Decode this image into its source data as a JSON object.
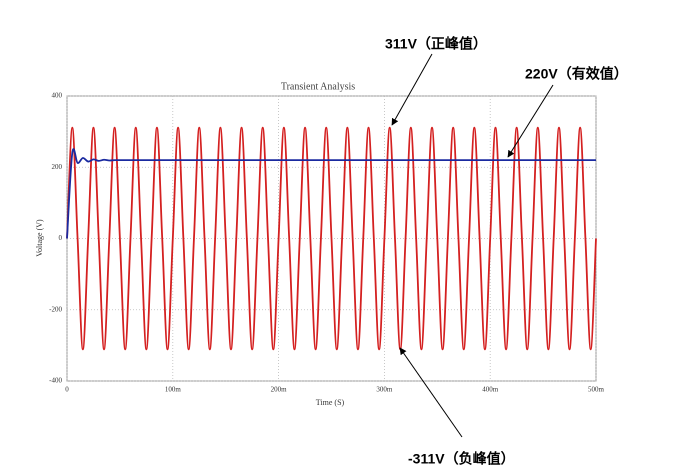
{
  "chart_data": {
    "type": "line",
    "title": "Transient Analysis",
    "x_label": "Time (S)",
    "y_label": "Voltage (V)",
    "x": [
      0,
      0.005,
      0.01,
      0.015,
      0.02,
      0.025,
      0.03,
      0.035,
      0.04,
      0.045,
      0.05,
      0.055,
      0.06,
      0.065,
      0.07,
      0.075,
      0.08,
      0.085,
      0.09,
      0.095,
      0.1,
      0.105,
      0.11,
      0.115,
      0.12,
      0.125,
      0.13,
      0.135,
      0.14,
      0.145,
      0.15,
      0.155,
      0.16,
      0.165,
      0.17,
      0.175,
      0.18,
      0.185,
      0.19,
      0.195,
      0.2,
      0.205,
      0.21,
      0.215,
      0.22,
      0.225,
      0.23,
      0.235,
      0.24,
      0.245,
      0.25,
      0.255,
      0.26,
      0.265,
      0.27,
      0.275,
      0.28,
      0.285,
      0.29,
      0.295,
      0.3,
      0.305,
      0.31,
      0.315,
      0.32,
      0.325,
      0.33,
      0.335,
      0.34,
      0.345,
      0.35,
      0.355,
      0.36,
      0.365,
      0.37,
      0.375,
      0.38,
      0.385,
      0.39,
      0.395,
      0.4,
      0.405,
      0.41,
      0.415,
      0.42,
      0.425,
      0.43,
      0.435,
      0.44,
      0.445,
      0.45,
      0.455,
      0.46,
      0.465,
      0.47,
      0.475,
      0.48,
      0.485,
      0.49,
      0.495,
      0.5
    ],
    "series": [
      {
        "color": "#d42020",
        "values": [
          0,
          311,
          0,
          -311,
          0,
          311,
          0,
          -311,
          0,
          311,
          0,
          -311,
          0,
          311,
          0,
          -311,
          0,
          311,
          0,
          -311,
          0,
          311,
          0,
          -311,
          0,
          311,
          0,
          -311,
          0,
          311,
          0,
          -311,
          0,
          311,
          0,
          -311,
          0,
          311,
          0,
          -311,
          0,
          311,
          0,
          -311,
          0,
          311,
          0,
          -311,
          0,
          311,
          0,
          -311,
          0,
          311,
          0,
          -311,
          0,
          311,
          0,
          -311,
          0,
          311,
          0,
          -311,
          0,
          311,
          0,
          -311,
          0,
          311,
          0,
          -311,
          0,
          311,
          0,
          -311,
          0,
          311,
          0,
          -311,
          0,
          311,
          0,
          -311,
          0,
          311,
          0,
          -311,
          0,
          311,
          0,
          -311,
          0,
          311,
          0,
          -311,
          0,
          311,
          0,
          -311,
          0
        ]
      },
      {
        "color": "#1a2aa0",
        "values": [
          0,
          240,
          212,
          226,
          216,
          222,
          218,
          221,
          219,
          220,
          220,
          220,
          220,
          220,
          220,
          220,
          220,
          220,
          220,
          220,
          220,
          220,
          220,
          220,
          220,
          220,
          220,
          220,
          220,
          220,
          220,
          220,
          220,
          220,
          220,
          220,
          220,
          220,
          220,
          220,
          220,
          220,
          220,
          220,
          220,
          220,
          220,
          220,
          220,
          220,
          220,
          220,
          220,
          220,
          220,
          220,
          220,
          220,
          220,
          220,
          220,
          220,
          220,
          220,
          220,
          220,
          220,
          220,
          220,
          220,
          220,
          220,
          220,
          220,
          220,
          220,
          220,
          220,
          220,
          220,
          220,
          220,
          220,
          220,
          220,
          220,
          220,
          220,
          220,
          220,
          220,
          220,
          220,
          220,
          220,
          220,
          220,
          220,
          220,
          220,
          220
        ]
      }
    ],
    "xlim": [
      0,
      0.5
    ],
    "xticks": [
      0,
      {
        "value": 0.1,
        "label": "100m"
      },
      {
        "value": 0.2,
        "label": "200m"
      },
      {
        "value": 0.3,
        "label": "300m"
      },
      {
        "value": 0.4,
        "label": "400m"
      },
      {
        "value": 0.5,
        "label": "500m"
      }
    ],
    "ylim": [
      -400,
      400
    ],
    "yticks": [
      -400,
      -200,
      0,
      200,
      400
    ],
    "grid": true,
    "annotations": [
      "311V（正峰值）",
      "220V（有效值）",
      "-311V（负峰值）"
    ]
  }
}
